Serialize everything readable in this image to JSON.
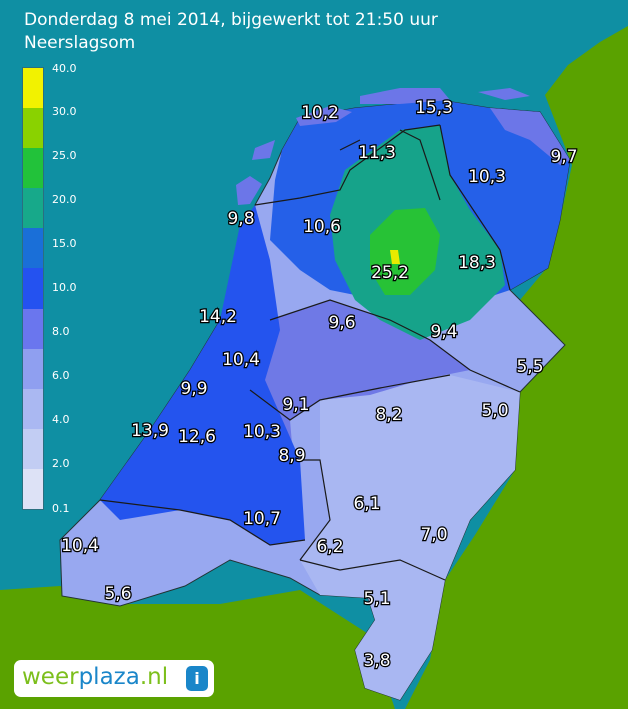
{
  "title": "Donderdag 8 mei 2014, bijgewerkt tot 21:50 uur",
  "subtitle": "Neerslagsom",
  "legend": {
    "ticks": [
      "40.0",
      "30.0",
      "25.0",
      "20.0",
      "15.0",
      "10.0",
      "8.0",
      "6.0",
      "4.0",
      "2.0",
      "0.1"
    ],
    "colors": [
      "#f2f200",
      "#8ad200",
      "#22c23a",
      "#17a98a",
      "#1a6fd8",
      "#2452f0",
      "#6a76ee",
      "#8f9ff0",
      "#aab8f2",
      "#c2cdf3",
      "#dde2f6"
    ]
  },
  "colors": {
    "sea": "#0f8fa3",
    "land": "#5aa200",
    "text": "#ffffff"
  },
  "values": [
    {
      "label": "10,2"
    },
    {
      "label": "15,3"
    },
    {
      "label": "11,3"
    },
    {
      "label": "9,7"
    },
    {
      "label": "10,3"
    },
    {
      "label": "9,8"
    },
    {
      "label": "10,6"
    },
    {
      "label": "25,2"
    },
    {
      "label": "18,3"
    },
    {
      "label": "14,2"
    },
    {
      "label": "9,6"
    },
    {
      "label": "9,4"
    },
    {
      "label": "10,4"
    },
    {
      "label": "5,5"
    },
    {
      "label": "9,9"
    },
    {
      "label": "9,1"
    },
    {
      "label": "8,2"
    },
    {
      "label": "5,0"
    },
    {
      "label": "13,9"
    },
    {
      "label": "12,6"
    },
    {
      "label": "10,3"
    },
    {
      "label": "8,9"
    },
    {
      "label": "6,1"
    },
    {
      "label": "10,7"
    },
    {
      "label": "7,0"
    },
    {
      "label": "10,4"
    },
    {
      "label": "6,2"
    },
    {
      "label": "5,6"
    },
    {
      "label": "5,1"
    },
    {
      "label": "3,8"
    }
  ],
  "logo": {
    "weer": "weer",
    "plaza": "plaza",
    "tld": ".nl",
    "info": "i"
  }
}
